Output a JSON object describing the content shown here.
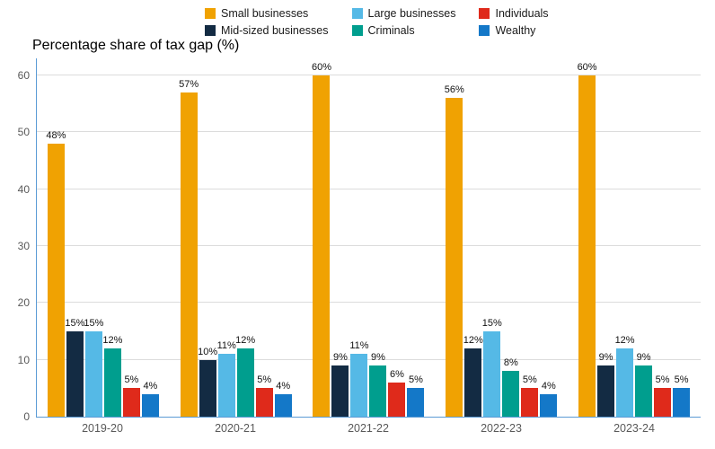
{
  "header": {
    "title": "Percentage share of tax gap (%)"
  },
  "chart_data": {
    "type": "bar",
    "title": "Percentage share of tax gap (%)",
    "categories": [
      "2019-20",
      "2020-21",
      "2021-22",
      "2022-23",
      "2023-24"
    ],
    "series": [
      {
        "name": "Small businesses",
        "color": "#F0A202",
        "values": [
          48,
          57,
          60,
          56,
          60
        ]
      },
      {
        "name": "Mid-sized businesses",
        "color": "#132B43",
        "values": [
          15,
          10,
          9,
          12,
          9
        ]
      },
      {
        "name": "Large businesses",
        "color": "#55B9E6",
        "values": [
          15,
          11,
          11,
          15,
          12
        ]
      },
      {
        "name": "Criminals",
        "color": "#009E8E",
        "values": [
          12,
          12,
          9,
          8,
          9
        ]
      },
      {
        "name": "Individuals",
        "color": "#DF2A1B",
        "values": [
          5,
          5,
          6,
          5,
          5
        ]
      },
      {
        "name": "Wealthy",
        "color": "#1478C8",
        "values": [
          4,
          4,
          5,
          4,
          5
        ]
      }
    ],
    "xlabel": "",
    "ylabel": "",
    "ylim": [
      0,
      60
    ],
    "yticks": [
      0,
      10,
      20,
      30,
      40,
      50,
      60
    ],
    "grid": true,
    "legend_position": "top",
    "data_labels": true,
    "data_label_format": "{value}%"
  }
}
